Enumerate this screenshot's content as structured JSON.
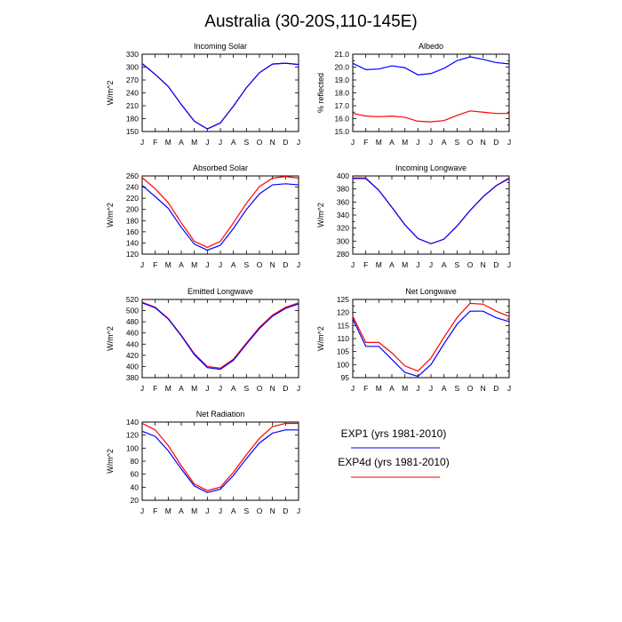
{
  "title": "Australia (30-20S,110-145E)",
  "colors": {
    "EXP1": "#0000ff",
    "EXP4d": "#ff0000"
  },
  "legend": [
    {
      "label": "EXP1 (yrs 1981-2010)",
      "color": "#0000ff"
    },
    {
      "label": "EXP4d (yrs 1981-2010)",
      "color": "#ff0000"
    }
  ],
  "chart_data": [
    {
      "type": "line",
      "title": "Incoming Solar",
      "ylabel": "W/m^2",
      "ylim": [
        150,
        330
      ],
      "yticks": [
        150,
        180,
        210,
        240,
        270,
        300,
        330
      ],
      "x": [
        "J",
        "F",
        "M",
        "A",
        "M",
        "J",
        "J",
        "A",
        "S",
        "O",
        "N",
        "D",
        "J"
      ],
      "series": [
        {
          "name": "EXP1",
          "values": [
            308,
            283,
            255,
            213,
            174,
            156,
            170,
            209,
            252,
            287,
            307,
            309,
            306
          ]
        },
        {
          "name": "EXP4d",
          "values": [
            308,
            283,
            255,
            213,
            174,
            156,
            170,
            209,
            252,
            287,
            307,
            309,
            306
          ]
        }
      ]
    },
    {
      "type": "line",
      "title": "Albedo",
      "ylabel": "% reflected",
      "ylim": [
        15.0,
        21.0
      ],
      "yticks": [
        15.0,
        15.5,
        16.0,
        16.5,
        17.0,
        17.5,
        18.0,
        18.5,
        19.0,
        19.5,
        20.0,
        20.5,
        21.0
      ],
      "ytick_labels": [
        "15.0",
        "",
        "16.0",
        "",
        "17.0",
        "",
        "18.0",
        "",
        "19.0",
        "",
        "20.0",
        "",
        "21.0"
      ],
      "x": [
        "J",
        "F",
        "M",
        "A",
        "M",
        "J",
        "J",
        "A",
        "S",
        "O",
        "N",
        "D",
        "J"
      ],
      "series": [
        {
          "name": "EXP1",
          "values": [
            20.3,
            19.8,
            19.85,
            20.1,
            19.95,
            19.4,
            19.5,
            19.9,
            20.5,
            20.8,
            20.6,
            20.35,
            20.25
          ]
        },
        {
          "name": "EXP4d",
          "values": [
            16.4,
            16.2,
            16.15,
            16.2,
            16.1,
            15.8,
            15.75,
            15.85,
            16.25,
            16.6,
            16.5,
            16.4,
            16.4
          ]
        }
      ]
    },
    {
      "type": "line",
      "title": "Absorbed Solar",
      "ylabel": "W/m^2",
      "ylim": [
        120,
        260
      ],
      "yticks": [
        120,
        140,
        160,
        180,
        200,
        220,
        240,
        260
      ],
      "x": [
        "J",
        "F",
        "M",
        "A",
        "M",
        "J",
        "J",
        "A",
        "S",
        "O",
        "N",
        "D",
        "J"
      ],
      "series": [
        {
          "name": "EXP1",
          "values": [
            243,
            223,
            202,
            168,
            138,
            127,
            136,
            166,
            200,
            228,
            244,
            246,
            244
          ]
        },
        {
          "name": "EXP4d",
          "values": [
            257,
            237,
            212,
            176,
            143,
            132,
            143,
            176,
            211,
            241,
            256,
            259,
            256
          ]
        }
      ]
    },
    {
      "type": "line",
      "title": "Incoming Longwave",
      "ylabel": "W/m^2",
      "ylim": [
        280,
        400
      ],
      "yticks": [
        280,
        290,
        300,
        310,
        320,
        330,
        340,
        350,
        360,
        370,
        380,
        390,
        400
      ],
      "ytick_labels": [
        "280",
        "",
        "300",
        "",
        "320",
        "",
        "340",
        "",
        "360",
        "",
        "380",
        "",
        "400"
      ],
      "x": [
        "J",
        "F",
        "M",
        "A",
        "M",
        "J",
        "J",
        "A",
        "S",
        "O",
        "N",
        "D",
        "J"
      ],
      "series": [
        {
          "name": "EXP1",
          "values": [
            396,
            396,
            378,
            352,
            325,
            304,
            296,
            303,
            323,
            347,
            368,
            385,
            396
          ]
        },
        {
          "name": "EXP4d",
          "values": [
            397,
            397,
            378,
            352,
            325,
            304,
            296,
            303,
            323,
            347,
            368,
            385,
            397
          ]
        }
      ]
    },
    {
      "type": "line",
      "title": "Emitted Longwave",
      "ylabel": "W/m^2",
      "ylim": [
        380,
        520
      ],
      "yticks": [
        380,
        400,
        420,
        440,
        460,
        480,
        500,
        520
      ],
      "x": [
        "J",
        "F",
        "M",
        "A",
        "M",
        "J",
        "J",
        "A",
        "S",
        "O",
        "N",
        "D",
        "J"
      ],
      "series": [
        {
          "name": "EXP1",
          "values": [
            514,
            505,
            485,
            455,
            421,
            398,
            395,
            411,
            440,
            468,
            490,
            504,
            512
          ]
        },
        {
          "name": "EXP4d",
          "values": [
            515,
            506,
            486,
            456,
            423,
            400,
            397,
            413,
            442,
            470,
            492,
            506,
            514
          ]
        }
      ]
    },
    {
      "type": "line",
      "title": "Net Longwave",
      "ylabel": "W/m^2",
      "ylim": [
        95,
        125
      ],
      "yticks": [
        95,
        97.5,
        100,
        102.5,
        105,
        107.5,
        110,
        112.5,
        115,
        117.5,
        120,
        122.5,
        125
      ],
      "ytick_labels": [
        "95",
        "",
        "100",
        "",
        "105",
        "",
        "110",
        "",
        "115",
        "",
        "120",
        "",
        "125"
      ],
      "x": [
        "J",
        "F",
        "M",
        "A",
        "M",
        "J",
        "J",
        "A",
        "S",
        "O",
        "N",
        "D",
        "J"
      ],
      "series": [
        {
          "name": "EXP1",
          "values": [
            117.5,
            107,
            107,
            102,
            97,
            95.5,
            100,
            108,
            115.5,
            120.5,
            120.5,
            118,
            116.5
          ]
        },
        {
          "name": "EXP4d",
          "values": [
            118.5,
            108.5,
            108.5,
            104.5,
            99.5,
            97.5,
            102.5,
            110.5,
            118,
            123.5,
            123.2,
            120.5,
            118.5
          ]
        }
      ]
    },
    {
      "type": "line",
      "title": "Net Radiation",
      "ylabel": "W/m^2",
      "ylim": [
        20,
        140
      ],
      "yticks": [
        20,
        40,
        60,
        80,
        100,
        120,
        140
      ],
      "x": [
        "J",
        "F",
        "M",
        "A",
        "M",
        "J",
        "J",
        "A",
        "S",
        "O",
        "N",
        "D",
        "J"
      ],
      "series": [
        {
          "name": "EXP1",
          "values": [
            126,
            118,
            96,
            68,
            42,
            32,
            37,
            58,
            84,
            108,
            123,
            128,
            128
          ]
        },
        {
          "name": "EXP4d",
          "values": [
            138,
            128,
            104,
            73,
            45,
            35,
            40,
            63,
            90,
            115,
            133,
            138,
            138
          ]
        }
      ]
    }
  ]
}
